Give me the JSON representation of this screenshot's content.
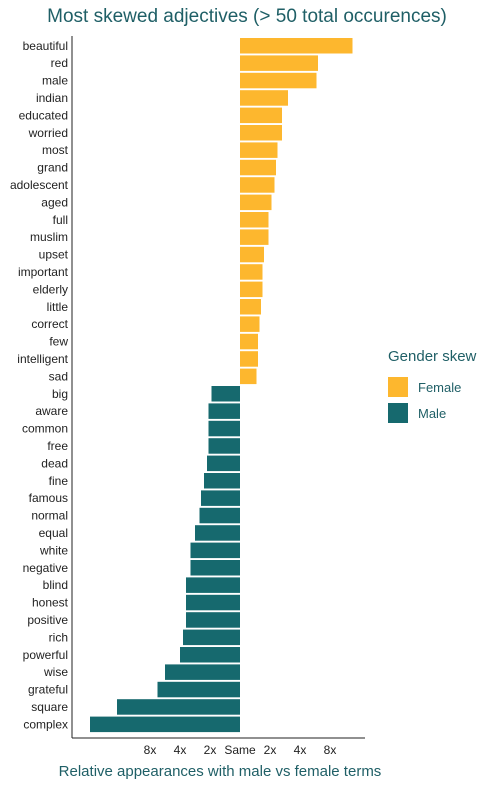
{
  "chart_data": {
    "type": "bar",
    "orientation": "horizontal",
    "title": "Most skewed adjectives (> 50 total occurences)",
    "xlabel": "Relative appearances with male vs female terms",
    "ylabel": "",
    "x_scale": "log2",
    "x_ticks": [
      "8x",
      "4x",
      "2x",
      "Same",
      "2x",
      "4x",
      "8x"
    ],
    "legend": {
      "title": "Gender skew",
      "position": "right",
      "items": [
        {
          "name": "Female",
          "color": "#fdb72e"
        },
        {
          "name": "Male",
          "color": "#16696e"
        }
      ]
    },
    "note": "negative values = male skew, positive = female skew (units: log2 ratio)",
    "categories": [
      "beautiful",
      "red",
      "male",
      "indian",
      "educated",
      "worried",
      "most",
      "grand",
      "adolescent",
      "aged",
      "full",
      "muslim",
      "upset",
      "important",
      "elderly",
      "little",
      "correct",
      "few",
      "intelligent",
      "sad",
      "big",
      "aware",
      "common",
      "free",
      "dead",
      "fine",
      "famous",
      "normal",
      "equal",
      "white",
      "negative",
      "blind",
      "honest",
      "positive",
      "rich",
      "powerful",
      "wise",
      "grateful",
      "square",
      "complex"
    ],
    "values": [
      3.75,
      2.6,
      2.55,
      1.6,
      1.4,
      1.4,
      1.25,
      1.2,
      1.15,
      1.05,
      0.95,
      0.95,
      0.8,
      0.75,
      0.75,
      0.7,
      0.65,
      0.6,
      0.6,
      0.55,
      -0.95,
      -1.05,
      -1.05,
      -1.05,
      -1.1,
      -1.2,
      -1.3,
      -1.35,
      -1.5,
      -1.65,
      -1.65,
      -1.8,
      -1.8,
      -1.8,
      -1.9,
      -2.0,
      -2.5,
      -2.75,
      -4.1,
      -5.0
    ],
    "series_colors": {
      "female": "#fdb72e",
      "male": "#16696e"
    }
  }
}
